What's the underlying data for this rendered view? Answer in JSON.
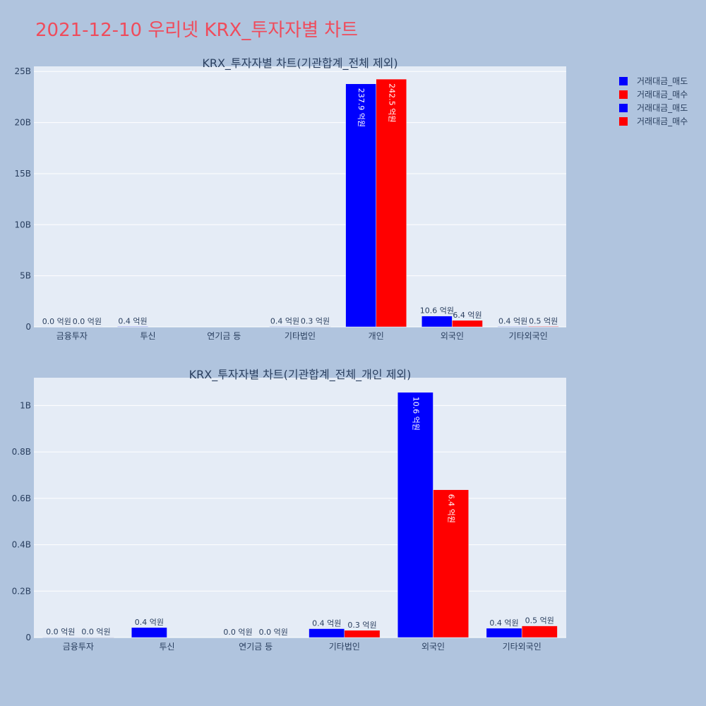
{
  "title": "2021-12-10 우리넷 KRX_투자자별 차트",
  "legend": [
    {
      "label": "거래대금_매도",
      "color": "#0000ff"
    },
    {
      "label": "거래대금_매수",
      "color": "#ff0000"
    },
    {
      "label": "거래대금_매도",
      "color": "#0000ff"
    },
    {
      "label": "거래대금_매수",
      "color": "#ff0000"
    }
  ],
  "chart_data": [
    {
      "type": "bar",
      "title": "KRX_투자자별 차트(기관합계_전체 제외)",
      "categories": [
        "금융투자",
        "투신",
        "연기금 등",
        "기타법인",
        "개인",
        "외국인",
        "기타외국인"
      ],
      "ylim": [
        0,
        25500000000
      ],
      "yticks": [
        0,
        5000000000,
        10000000000,
        15000000000,
        20000000000,
        25000000000
      ],
      "ytick_labels": [
        "0",
        "5B",
        "10B",
        "15B",
        "20B",
        "25B"
      ],
      "grid": true,
      "series": [
        {
          "name": "거래대금_매도",
          "color": "#0000ff",
          "values": [
            1000000,
            43000000,
            0,
            38000000,
            23790000000,
            1060000000,
            40000000
          ],
          "labels": [
            "0.0 억원",
            "0.4 억원",
            "",
            "0.4 억원",
            "237.9 억원",
            "10.6 억원",
            "0.4 억원"
          ]
        },
        {
          "name": "거래대금_매수",
          "color": "#ff0000",
          "values": [
            1000000,
            0,
            0,
            31000000,
            24250000000,
            637000000,
            50000000
          ],
          "labels": [
            "0.0 억원",
            "",
            "",
            "0.3 억원",
            "242.5 억원",
            "6.4 억원",
            "0.5 억원"
          ]
        }
      ]
    },
    {
      "type": "bar",
      "title": "KRX_투자자별 차트(기관합계_전체_개인 제외)",
      "categories": [
        "금융투자",
        "투신",
        "연기금 등",
        "기타법인",
        "외국인",
        "기타외국인"
      ],
      "ylim": [
        0,
        1120000000
      ],
      "yticks": [
        0,
        200000000,
        400000000,
        600000000,
        800000000,
        1000000000
      ],
      "ytick_labels": [
        "0",
        "0.2B",
        "0.4B",
        "0.6B",
        "0.8B",
        "1B"
      ],
      "grid": true,
      "series": [
        {
          "name": "거래대금_매도",
          "color": "#0000ff",
          "values": [
            1000000,
            43000000,
            0,
            38000000,
            1057000000,
            40000000
          ],
          "labels": [
            "0.0 억원",
            "0.4 억원",
            "0.0 억원",
            "0.4 억원",
            "10.6 억원",
            "0.4 억원"
          ]
        },
        {
          "name": "거래대금_매수",
          "color": "#ff0000",
          "values": [
            1000000,
            0,
            0,
            31000000,
            637000000,
            50000000
          ],
          "labels": [
            "0.0 억원",
            "",
            "0.0 억원",
            "0.3 억원",
            "6.4 억원",
            "0.5 억원"
          ]
        }
      ]
    }
  ]
}
